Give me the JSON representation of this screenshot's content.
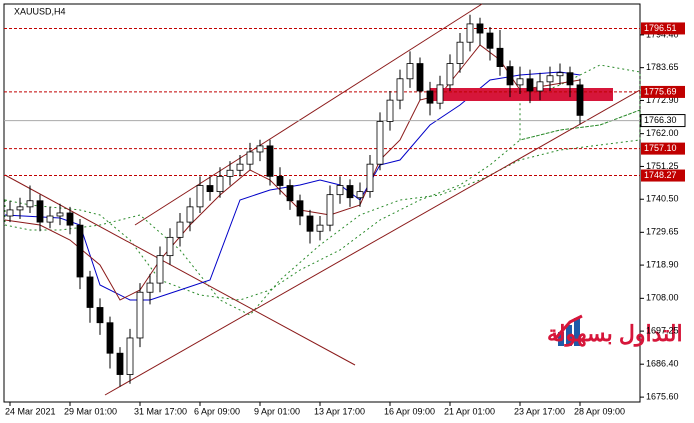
{
  "chart_data": {
    "type": "candlestick",
    "title": "XAUUSD,H4",
    "categories": [
      "24 Mar 2021",
      null,
      null,
      null,
      null,
      null,
      "29 Mar 01:00",
      null,
      null,
      null,
      null,
      null,
      null,
      "31 Mar 17:00",
      null,
      null,
      null,
      null,
      null,
      "6 Apr 09:00",
      null,
      null,
      null,
      null,
      null,
      "9 Apr 01:00",
      null,
      null,
      null,
      null,
      null,
      "13 Apr 17:00",
      null,
      null,
      null,
      null,
      null,
      null,
      "16 Apr 09:00",
      null,
      null,
      null,
      null,
      null,
      "21 Apr 01:00",
      null,
      null,
      null,
      null,
      null,
      null,
      "23 Apr 17:00",
      null,
      null,
      null,
      null,
      null,
      "28 Apr 09:00"
    ],
    "ohlc": [
      [
        1735,
        1740,
        1733,
        1737
      ],
      [
        1737,
        1741,
        1734,
        1738
      ],
      [
        1738,
        1745,
        1736,
        1740
      ],
      [
        1740,
        1742,
        1730,
        1733
      ],
      [
        1733,
        1738,
        1731,
        1735
      ],
      [
        1735,
        1739,
        1732,
        1736
      ],
      [
        1736,
        1738,
        1729,
        1732
      ],
      [
        1732,
        1734,
        1711,
        1715
      ],
      [
        1715,
        1717,
        1700,
        1705
      ],
      [
        1705,
        1708,
        1696,
        1700
      ],
      [
        1700,
        1702,
        1685,
        1690
      ],
      [
        1690,
        1692,
        1679,
        1683
      ],
      [
        1683,
        1698,
        1680,
        1695
      ],
      [
        1695,
        1713,
        1692,
        1710
      ],
      [
        1710,
        1716,
        1706,
        1713
      ],
      [
        1713,
        1725,
        1710,
        1722
      ],
      [
        1722,
        1731,
        1719,
        1728
      ],
      [
        1728,
        1736,
        1725,
        1733
      ],
      [
        1733,
        1741,
        1730,
        1738
      ],
      [
        1738,
        1748,
        1736,
        1745
      ],
      [
        1745,
        1748,
        1740,
        1743
      ],
      [
        1743,
        1751,
        1741,
        1748
      ],
      [
        1748,
        1753,
        1745,
        1750
      ],
      [
        1750,
        1755,
        1748,
        1752
      ],
      [
        1752,
        1759,
        1750,
        1756
      ],
      [
        1756,
        1760,
        1753,
        1758
      ],
      [
        1758,
        1760,
        1745,
        1748
      ],
      [
        1748,
        1751,
        1742,
        1745
      ],
      [
        1745,
        1747,
        1737,
        1740
      ],
      [
        1740,
        1742,
        1732,
        1735
      ],
      [
        1735,
        1737,
        1726,
        1730
      ],
      [
        1730,
        1735,
        1727,
        1732
      ],
      [
        1732,
        1745,
        1730,
        1742
      ],
      [
        1742,
        1748,
        1739,
        1745
      ],
      [
        1745,
        1747,
        1738,
        1741
      ],
      [
        1741,
        1746,
        1738,
        1743
      ],
      [
        1743,
        1755,
        1741,
        1752
      ],
      [
        1752,
        1769,
        1750,
        1766
      ],
      [
        1766,
        1776,
        1763,
        1773
      ],
      [
        1773,
        1783,
        1770,
        1780
      ],
      [
        1780,
        1789,
        1777,
        1785
      ],
      [
        1785,
        1787,
        1773,
        1776
      ],
      [
        1776,
        1779,
        1768,
        1772
      ],
      [
        1772,
        1781,
        1770,
        1778
      ],
      [
        1778,
        1788,
        1776,
        1785
      ],
      [
        1785,
        1795,
        1782,
        1792
      ],
      [
        1792,
        1801,
        1789,
        1798
      ],
      [
        1798,
        1800,
        1791,
        1795
      ],
      [
        1795,
        1797,
        1786,
        1790
      ],
      [
        1790,
        1796,
        1781,
        1784
      ],
      [
        1784,
        1786,
        1774,
        1778
      ],
      [
        1778,
        1784,
        1775,
        1780
      ],
      [
        1780,
        1783,
        1772,
        1776
      ],
      [
        1776,
        1782,
        1773,
        1779
      ],
      [
        1779,
        1784,
        1776,
        1781
      ],
      [
        1781,
        1785,
        1778,
        1782
      ],
      [
        1782,
        1784,
        1774,
        1778
      ],
      [
        1778,
        1780,
        1765,
        1768
      ]
    ],
    "ylim": [
      1674,
      1804.2
    ],
    "yticks": [
      {
        "value": 1794.4,
        "label": "1794.40"
      },
      1783.65,
      {
        "value": 1772.9,
        "label": "1772.90"
      },
      {
        "value": 1762,
        "label": "1762.00"
      },
      1751.25,
      {
        "value": 1740.5,
        "label": "1740.50"
      },
      1729.65,
      {
        "value": 1718.9,
        "label": "1718.90"
      },
      {
        "value": 1708,
        "label": "1708.00"
      },
      1697.25,
      {
        "value": 1686.4,
        "label": "1686.40"
      },
      {
        "value": 1675.6,
        "label": "1675.60"
      }
    ],
    "levels": [
      1796.51,
      1775.69,
      {
        "value": 1757.1,
        "label": "1757.10"
      },
      1748.27
    ],
    "level_color": "#c00000",
    "last_price": {
      "value": 1766.3,
      "label": "1766.30"
    },
    "logo_text": "التداول بسهولة"
  }
}
